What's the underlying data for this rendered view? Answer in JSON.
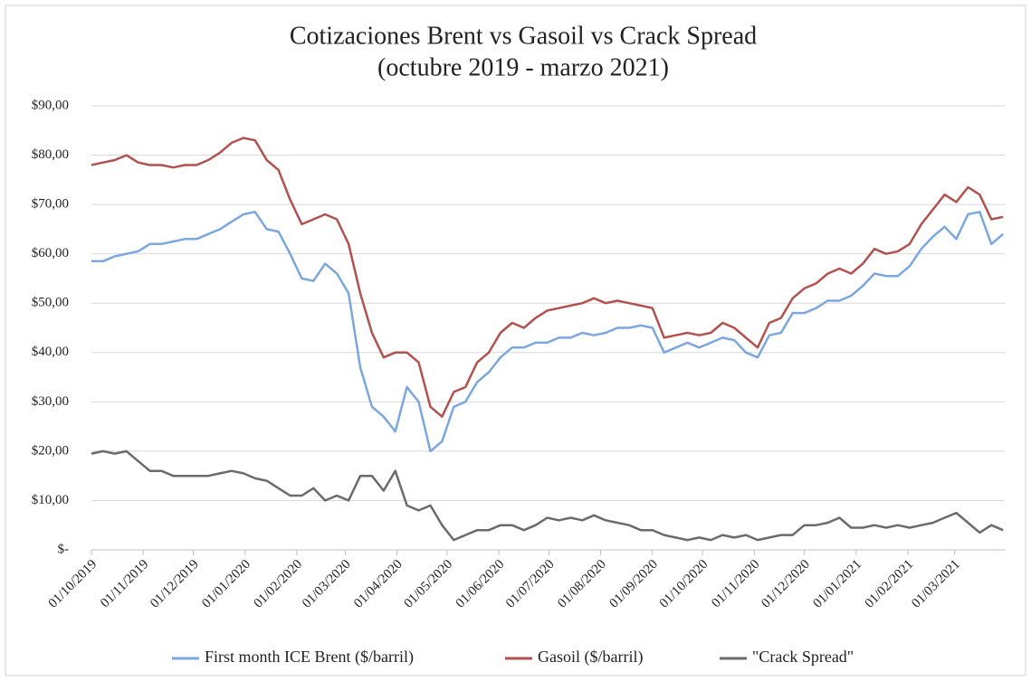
{
  "chart_data": {
    "type": "line",
    "title": "Cotizaciones Brent vs Gasoil vs Crack Spread",
    "subtitle": "(octubre 2019 - marzo 2021)",
    "x": [
      "01/10/2019",
      "08/10/2019",
      "15/10/2019",
      "22/10/2019",
      "29/10/2019",
      "05/11/2019",
      "12/11/2019",
      "19/11/2019",
      "26/11/2019",
      "03/12/2019",
      "10/12/2019",
      "17/12/2019",
      "24/12/2019",
      "31/12/2019",
      "07/01/2020",
      "14/01/2020",
      "21/01/2020",
      "28/01/2020",
      "04/02/2020",
      "11/02/2020",
      "18/02/2020",
      "25/02/2020",
      "03/03/2020",
      "10/03/2020",
      "17/03/2020",
      "24/03/2020",
      "31/03/2020",
      "07/04/2020",
      "14/04/2020",
      "21/04/2020",
      "28/04/2020",
      "05/05/2020",
      "12/05/2020",
      "19/05/2020",
      "26/05/2020",
      "02/06/2020",
      "09/06/2020",
      "16/06/2020",
      "23/06/2020",
      "30/06/2020",
      "07/07/2020",
      "14/07/2020",
      "21/07/2020",
      "28/07/2020",
      "04/08/2020",
      "11/08/2020",
      "18/08/2020",
      "25/08/2020",
      "01/09/2020",
      "08/09/2020",
      "15/09/2020",
      "22/09/2020",
      "29/09/2020",
      "06/10/2020",
      "13/10/2020",
      "20/10/2020",
      "27/10/2020",
      "03/11/2020",
      "10/11/2020",
      "17/11/2020",
      "24/11/2020",
      "01/12/2020",
      "08/12/2020",
      "15/12/2020",
      "22/12/2020",
      "29/12/2020",
      "05/01/2021",
      "12/01/2021",
      "19/01/2021",
      "26/01/2021",
      "02/02/2021",
      "09/02/2021",
      "16/02/2021",
      "23/02/2021",
      "02/03/2021",
      "09/03/2021",
      "16/03/2021",
      "23/03/2021",
      "30/03/2021"
    ],
    "series": [
      {
        "name": "First month ICE Brent ($/barril)",
        "color": "#7ba7e1",
        "values": [
          58.5,
          58.5,
          59.5,
          60,
          60.5,
          62,
          62,
          62.5,
          63,
          63,
          64,
          65,
          66.5,
          68,
          68.5,
          65,
          64.5,
          60,
          55,
          54.5,
          58,
          56,
          52,
          37,
          29,
          27,
          24,
          33,
          30,
          20,
          22,
          29,
          30,
          34,
          36,
          39,
          41,
          41,
          42,
          42,
          43,
          43,
          44,
          43.5,
          44,
          45,
          45,
          45.5,
          45,
          40,
          41,
          42,
          41,
          42,
          43,
          42.5,
          40,
          39,
          43.5,
          44,
          48,
          48,
          49,
          50.5,
          50.5,
          51.5,
          53.5,
          56,
          55.5,
          55.5,
          57.5,
          61,
          63.5,
          65.5,
          63,
          68,
          68.5,
          62,
          64
        ]
      },
      {
        "name": "Gasoil ($/barril)",
        "color": "#b2514d",
        "values": [
          78,
          78.5,
          79,
          80,
          78.5,
          78,
          78,
          77.5,
          78,
          78,
          79,
          80.5,
          82.5,
          83.5,
          83,
          79,
          77,
          71,
          66,
          67,
          68,
          67,
          62,
          52,
          44,
          39,
          40,
          40,
          38,
          29,
          27,
          32,
          33,
          38,
          40,
          44,
          46,
          45,
          47,
          48.5,
          49,
          49.5,
          50,
          51,
          50,
          50.5,
          50,
          49.5,
          49,
          43,
          43.5,
          44,
          43.5,
          44,
          46,
          45,
          43,
          41,
          46,
          47,
          51,
          53,
          54,
          56,
          57,
          56,
          58,
          61,
          60,
          60.5,
          62,
          66,
          69,
          72,
          70.5,
          73.5,
          72,
          67,
          67.5
        ]
      },
      {
        "name": "\"Crack Spread\"",
        "color": "#6b6b6b",
        "values": [
          19.5,
          20,
          19.5,
          20,
          18,
          16,
          16,
          15,
          15,
          15,
          15,
          15.5,
          16,
          15.5,
          14.5,
          14,
          12.5,
          11,
          11,
          12.5,
          10,
          11,
          10,
          15,
          15,
          12,
          16,
          9,
          8,
          9,
          5,
          2,
          3,
          4,
          4,
          5,
          5,
          4,
          5,
          6.5,
          6,
          6.5,
          6,
          7,
          6,
          5.5,
          5,
          4,
          4,
          3,
          2.5,
          2,
          2.5,
          2,
          3,
          2.5,
          3,
          2,
          2.5,
          3,
          3,
          5,
          5,
          5.5,
          6.5,
          4.5,
          4.5,
          5,
          4.5,
          5,
          4.5,
          5,
          5.5,
          6.5,
          7.5,
          5.5,
          3.5,
          5,
          4
        ]
      }
    ],
    "xlim": [
      "01/10/2019",
      "31/03/2021"
    ],
    "xticks": [
      "01/10/2019",
      "01/11/2019",
      "01/12/2019",
      "01/01/2020",
      "01/02/2020",
      "01/03/2020",
      "01/04/2020",
      "01/05/2020",
      "01/06/2020",
      "01/07/2020",
      "01/08/2020",
      "01/09/2020",
      "01/10/2020",
      "01/11/2020",
      "01/12/2020",
      "01/01/2021",
      "01/02/2021",
      "01/03/2021"
    ],
    "ylim": [
      0,
      90
    ],
    "yticks": [
      {
        "value": 0,
        "label": "$-"
      },
      {
        "value": 10,
        "label": "$10,00"
      },
      {
        "value": 20,
        "label": "$20,00"
      },
      {
        "value": 30,
        "label": "$30,00"
      },
      {
        "value": 40,
        "label": "$40,00"
      },
      {
        "value": 50,
        "label": "$50,00"
      },
      {
        "value": 60,
        "label": "$60,00"
      },
      {
        "value": 70,
        "label": "$70,00"
      },
      {
        "value": 80,
        "label": "$80,00"
      },
      {
        "value": 90,
        "label": "$90,00"
      }
    ],
    "grid": true,
    "legend": "bottom"
  }
}
